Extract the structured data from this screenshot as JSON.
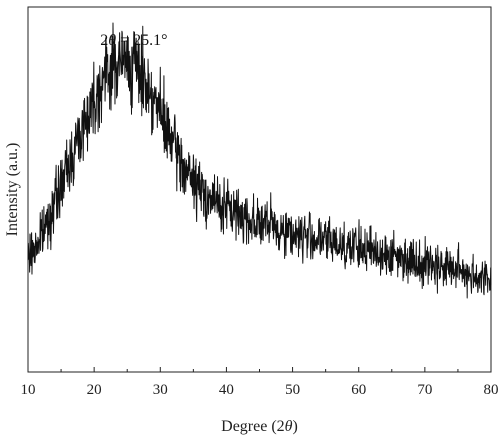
{
  "chart_data": {
    "type": "line",
    "title": "",
    "xlabel": "Degree (2θ)",
    "xlabel_prefix": "Degree (2",
    "xlabel_symbol": "θ",
    "xlabel_suffix": ")",
    "ylabel": "Intensity (a.u.)",
    "xlim": [
      10,
      80
    ],
    "ylim": [
      0,
      100
    ],
    "x_ticks": [
      10,
      20,
      30,
      40,
      50,
      60,
      70,
      80
    ],
    "y_tick_labels_shown": false,
    "grid": false,
    "legend": "none",
    "series": [
      {
        "noisy": true,
        "x": [
          10,
          12,
          14,
          16,
          18,
          20,
          21,
          22,
          23,
          24,
          25,
          26,
          27,
          28,
          29,
          30,
          31,
          32,
          33,
          34,
          35,
          36,
          38,
          40,
          42,
          45,
          50,
          55,
          60,
          65,
          70,
          75,
          80
        ],
        "y": [
          31,
          37,
          46,
          56,
          66,
          75,
          79,
          82,
          84,
          85,
          85,
          84,
          82,
          79,
          75,
          71,
          66,
          62,
          58,
          55,
          52,
          50,
          47,
          45,
          43,
          41,
          38,
          36,
          34,
          32,
          30,
          28,
          25
        ]
      }
    ],
    "annotations": [
      {
        "x": 25.1,
        "label": "2θ = 25.1°",
        "label_prefix": "2",
        "label_symbol": "θ",
        "label_suffix": " = 25.1°"
      }
    ],
    "colors": {
      "line": "#111111",
      "axis": "#222222"
    }
  }
}
